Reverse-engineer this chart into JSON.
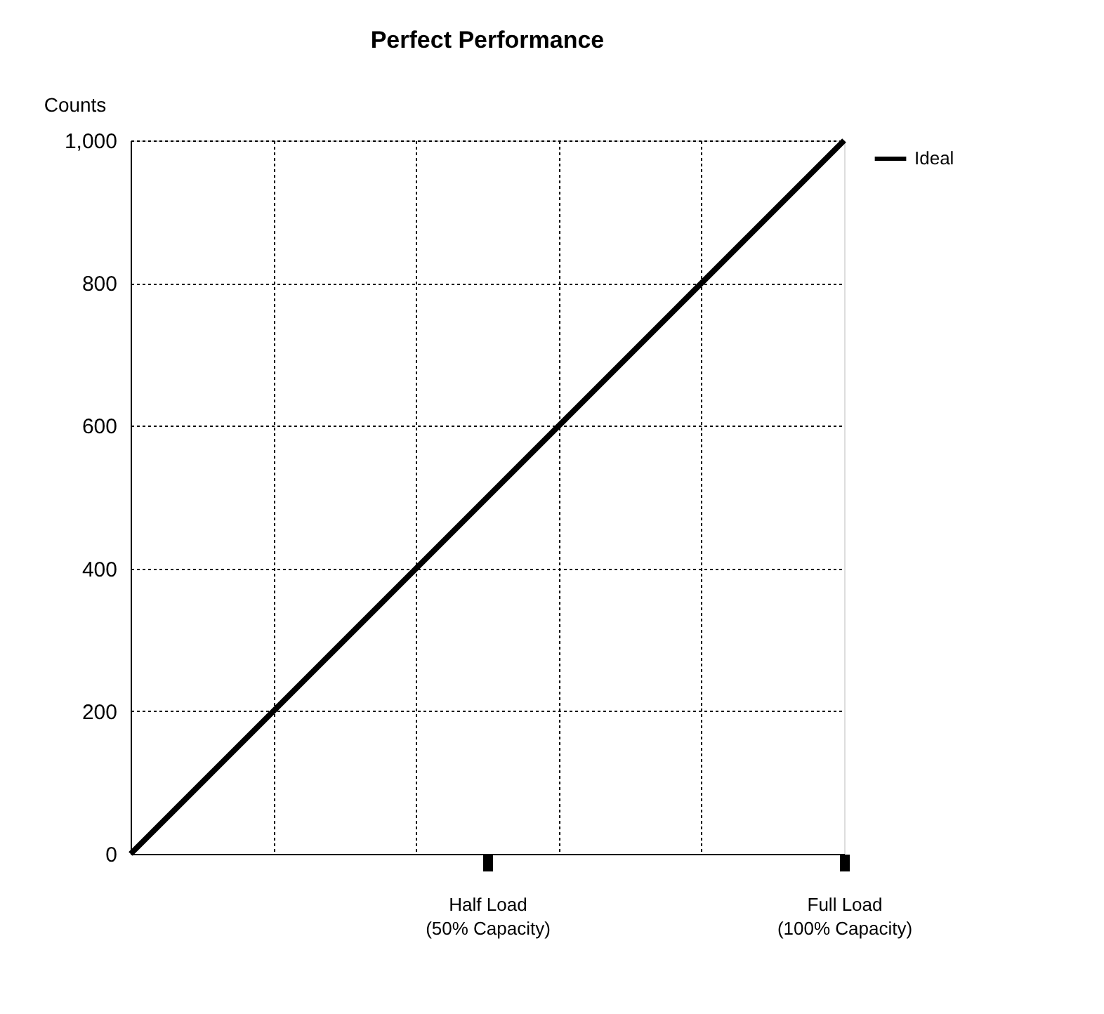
{
  "chart_data": {
    "type": "line",
    "title": "Perfect Performance",
    "ylabel": "Counts",
    "x": [
      0,
      100
    ],
    "series": [
      {
        "name": "Ideal",
        "color": "#000000",
        "values": [
          0,
          1000
        ]
      }
    ],
    "xlim": [
      0,
      100
    ],
    "xticks": [
      {
        "value": 20,
        "label": null
      },
      {
        "value": 40,
        "label": null
      },
      {
        "value": 50,
        "label": "Half Load (50% Capacity)"
      },
      {
        "value": 60,
        "label": null
      },
      {
        "value": 80,
        "label": null
      },
      {
        "value": 100,
        "label": "Full Load (100% Capacity)"
      }
    ],
    "ylim": [
      0,
      1000
    ],
    "yticks": [
      {
        "value": 0,
        "label": "0"
      },
      {
        "value": 200,
        "label": "200"
      },
      {
        "value": 400,
        "label": "400"
      },
      {
        "value": 600,
        "label": "600"
      },
      {
        "value": 800,
        "label": "800"
      },
      {
        "value": 1000,
        "label": "1,000"
      }
    ],
    "grid": true,
    "legend": "right",
    "marker": "none",
    "line_style": "solid"
  }
}
